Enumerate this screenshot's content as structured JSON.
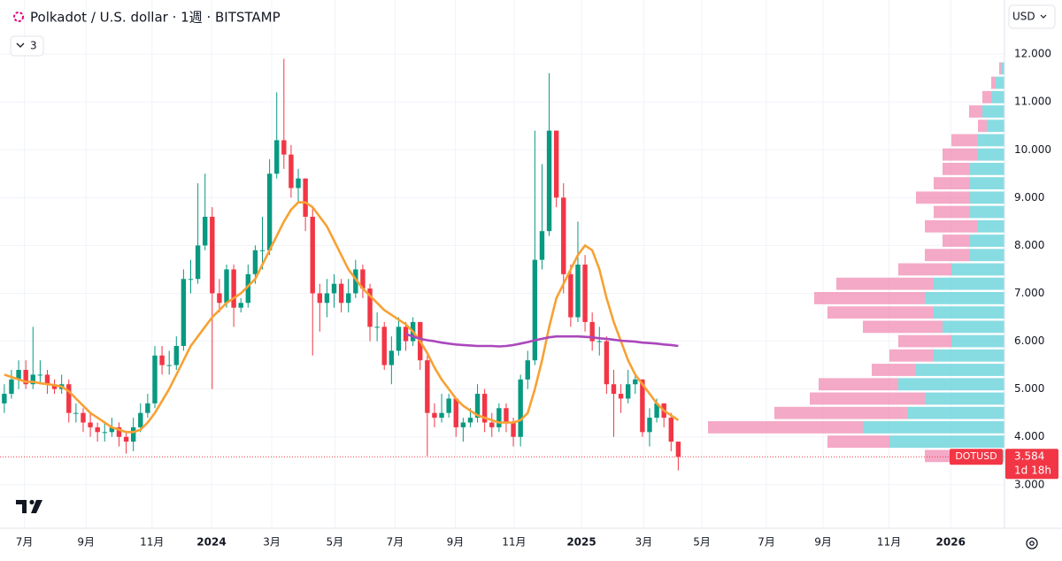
{
  "chart_data": {
    "type": "candlestick",
    "title": "Polkadot / U.S. dollar · 1週 · BITSTAMP",
    "currency": "USD",
    "indicators_collapsed": 3,
    "symbol": "DOTUSD",
    "last_price": 3.584,
    "countdown": "1d 18h",
    "up_color": "#089981",
    "down_color": "#f23645",
    "grid": true,
    "ylim": [
      2.09,
      13.13
    ],
    "yticks": [
      {
        "value": 3,
        "label": "3.000"
      },
      {
        "value": 4,
        "label": "4.000"
      },
      {
        "value": 5,
        "label": "5.000"
      },
      {
        "value": 6,
        "label": "6.000"
      },
      {
        "value": 7,
        "label": "7.000"
      },
      {
        "value": 8,
        "label": "8.000"
      },
      {
        "value": 9,
        "label": "9.000"
      },
      {
        "value": 10,
        "label": "10.000"
      },
      {
        "value": 11,
        "label": "11.000"
      },
      {
        "value": 12,
        "label": "12.000"
      }
    ],
    "xlim": [
      -0.6,
      139.5
    ],
    "xticks": [
      {
        "value": 2.8,
        "label": "7月"
      },
      {
        "value": 11.4,
        "label": "9月"
      },
      {
        "value": 20.6,
        "label": "11月"
      },
      {
        "value": 28.9,
        "label": "2024"
      },
      {
        "value": 37.3,
        "label": "3月"
      },
      {
        "value": 46.1,
        "label": "5月"
      },
      {
        "value": 54.5,
        "label": "7月"
      },
      {
        "value": 62.9,
        "label": "9月"
      },
      {
        "value": 71.1,
        "label": "11月"
      },
      {
        "value": 80.5,
        "label": "2025"
      },
      {
        "value": 89.2,
        "label": "3月"
      },
      {
        "value": 97.3,
        "label": "5月"
      },
      {
        "value": 106.3,
        "label": "7月"
      },
      {
        "value": 114.2,
        "label": "9月"
      },
      {
        "value": 123.4,
        "label": "11月"
      },
      {
        "value": 132.0,
        "label": "2026"
      }
    ],
    "open": [
      4.7,
      4.9,
      5.2,
      5.4,
      5.1,
      5.3,
      5.3,
      5.1,
      5.0,
      5.1,
      4.5,
      4.5,
      4.3,
      4.2,
      4.1,
      4.1,
      4.2,
      4.0,
      3.9,
      4.2,
      4.5,
      4.7,
      5.7,
      5.5,
      5.5,
      5.9,
      7.3,
      7.3,
      8.0,
      8.6,
      7.0,
      6.8,
      7.5,
      6.7,
      6.8,
      7.4,
      7.9,
      7.9,
      9.5,
      10.2,
      9.9,
      9.2,
      9.4,
      8.6,
      7.0,
      6.8,
      7.0,
      7.2,
      6.8,
      7.0,
      7.5,
      7.1,
      6.3,
      6.3,
      5.5,
      5.8,
      6.3,
      6.0,
      6.4,
      5.6,
      4.5,
      4.4,
      4.5,
      4.8,
      4.2,
      4.3,
      4.4,
      4.9,
      4.3,
      4.2,
      4.6,
      4.3,
      4.0,
      5.2,
      5.6,
      7.7,
      8.3,
      10.4,
      9.0,
      7.4,
      6.5,
      7.6,
      6.4,
      6.0,
      6.0,
      5.1,
      4.9,
      4.8,
      5.1,
      5.2,
      4.1,
      4.4,
      4.7,
      4.4,
      3.9
    ],
    "high": [
      5.1,
      5.4,
      5.6,
      5.6,
      6.3,
      5.6,
      5.4,
      5.2,
      5.3,
      5.2,
      4.7,
      4.6,
      4.5,
      4.3,
      4.3,
      4.4,
      4.3,
      4.1,
      4.4,
      4.7,
      4.9,
      5.9,
      5.9,
      5.8,
      6.1,
      7.5,
      7.7,
      9.3,
      9.5,
      8.8,
      7.3,
      7.6,
      7.6,
      6.9,
      7.6,
      8.0,
      8.6,
      9.8,
      11.2,
      11.9,
      10.1,
      9.6,
      9.4,
      8.8,
      7.2,
      7.3,
      7.4,
      7.3,
      7.3,
      7.7,
      7.6,
      7.2,
      6.6,
      6.4,
      6.1,
      6.5,
      6.4,
      6.5,
      6.4,
      5.7,
      4.7,
      4.9,
      4.9,
      4.8,
      4.4,
      4.6,
      5.1,
      5.0,
      4.5,
      4.7,
      4.7,
      4.4,
      5.3,
      5.8,
      10.4,
      9.7,
      11.6,
      10.4,
      9.3,
      7.6,
      8.5,
      7.8,
      6.6,
      6.3,
      6.1,
      5.4,
      5.1,
      5.4,
      5.3,
      5.2,
      4.6,
      4.8,
      4.7,
      4.5,
      3.9
    ],
    "low": [
      4.5,
      4.8,
      5.0,
      5.0,
      5.0,
      5.1,
      4.9,
      4.9,
      4.9,
      4.3,
      4.3,
      4.1,
      4.0,
      3.9,
      3.9,
      4.0,
      3.8,
      3.65,
      3.7,
      4.1,
      4.4,
      4.6,
      5.3,
      5.3,
      5.4,
      5.8,
      7.0,
      7.2,
      7.9,
      5.0,
      6.6,
      6.7,
      6.3,
      6.6,
      6.7,
      7.2,
      7.5,
      7.8,
      9.4,
      9.6,
      9.0,
      8.9,
      8.3,
      5.7,
      6.2,
      6.5,
      6.7,
      6.6,
      6.6,
      6.9,
      6.9,
      6.0,
      6.0,
      5.4,
      5.1,
      5.7,
      5.8,
      5.9,
      5.4,
      3.6,
      4.2,
      4.3,
      4.4,
      4.0,
      3.9,
      4.2,
      4.3,
      4.1,
      4.0,
      4.1,
      4.1,
      3.8,
      3.8,
      5.0,
      5.5,
      7.5,
      8.2,
      8.8,
      7.0,
      6.3,
      6.4,
      6.2,
      5.8,
      5.7,
      4.9,
      4.0,
      4.5,
      4.7,
      4.9,
      4.0,
      3.8,
      4.3,
      4.2,
      3.7,
      3.3
    ],
    "close": [
      4.9,
      5.2,
      5.4,
      5.1,
      5.3,
      5.3,
      5.1,
      5.0,
      5.1,
      4.5,
      4.5,
      4.3,
      4.2,
      4.1,
      4.1,
      4.2,
      4.0,
      3.9,
      4.2,
      4.5,
      4.7,
      5.7,
      5.5,
      5.5,
      5.9,
      7.3,
      7.3,
      8.0,
      8.6,
      7.0,
      6.8,
      7.5,
      6.7,
      6.8,
      7.4,
      7.9,
      7.9,
      9.5,
      10.2,
      9.9,
      9.2,
      9.4,
      8.6,
      7.0,
      6.8,
      7.0,
      7.2,
      6.8,
      7.0,
      7.5,
      7.1,
      6.3,
      6.3,
      5.5,
      5.8,
      6.3,
      6.0,
      6.4,
      5.6,
      4.5,
      4.4,
      4.5,
      4.8,
      4.2,
      4.3,
      4.4,
      4.9,
      4.3,
      4.2,
      4.6,
      4.3,
      4.0,
      5.2,
      5.6,
      7.7,
      8.3,
      10.4,
      9.0,
      7.4,
      6.5,
      7.6,
      6.4,
      6.0,
      6.0,
      5.1,
      4.9,
      4.8,
      5.1,
      5.2,
      4.1,
      4.4,
      4.7,
      4.4,
      3.9,
      3.584
    ],
    "series": [
      {
        "color": "#f7a133",
        "values": [
          5.3,
          5.25,
          5.2,
          5.15,
          5.15,
          5.12,
          5.1,
          5.08,
          5.05,
          4.95,
          4.8,
          4.65,
          4.5,
          4.4,
          4.3,
          4.2,
          4.15,
          4.1,
          4.1,
          4.15,
          4.3,
          4.5,
          4.75,
          5.0,
          5.3,
          5.6,
          5.9,
          6.1,
          6.3,
          6.5,
          6.65,
          6.8,
          6.9,
          7.0,
          7.15,
          7.3,
          7.6,
          7.9,
          8.2,
          8.5,
          8.75,
          8.9,
          8.9,
          8.8,
          8.6,
          8.4,
          8.1,
          7.8,
          7.5,
          7.3,
          7.1,
          6.95,
          6.8,
          6.65,
          6.55,
          6.45,
          6.35,
          6.2,
          6.0,
          5.75,
          5.45,
          5.2,
          5.0,
          4.8,
          4.65,
          4.55,
          4.45,
          4.4,
          4.35,
          4.3,
          4.3,
          4.3,
          4.35,
          4.5,
          5.0,
          5.6,
          6.3,
          6.9,
          7.2,
          7.5,
          7.8,
          8.0,
          7.9,
          7.5,
          6.9,
          6.4,
          6.0,
          5.6,
          5.3,
          5.1,
          4.9,
          4.7,
          4.55,
          4.45,
          4.35
        ]
      },
      {
        "color": "#ab47bc",
        "values": [
          null,
          null,
          null,
          null,
          null,
          null,
          null,
          null,
          null,
          null,
          null,
          null,
          null,
          null,
          null,
          null,
          null,
          null,
          null,
          null,
          null,
          null,
          null,
          null,
          null,
          null,
          null,
          null,
          null,
          null,
          null,
          null,
          null,
          null,
          null,
          null,
          null,
          null,
          null,
          null,
          null,
          null,
          null,
          null,
          null,
          null,
          null,
          null,
          null,
          null,
          null,
          null,
          null,
          null,
          null,
          null,
          6.15,
          6.1,
          6.05,
          6.02,
          6.0,
          5.97,
          5.95,
          5.93,
          5.92,
          5.91,
          5.9,
          5.9,
          5.9,
          5.89,
          5.9,
          5.92,
          5.95,
          5.98,
          6.02,
          6.05,
          6.08,
          6.1,
          6.1,
          6.1,
          6.1,
          6.09,
          6.08,
          6.06,
          6.05,
          6.03,
          6.01,
          6.0,
          5.99,
          5.97,
          5.96,
          5.95,
          5.93,
          5.92,
          5.9
        ]
      }
    ],
    "volume_profile": {
      "up_color": "#5fd0d8",
      "down_color": "#f08cb3",
      "prices": [
        3.6,
        3.9,
        4.2,
        4.5,
        4.8,
        5.1,
        5.4,
        5.7,
        6.0,
        6.3,
        6.6,
        6.9,
        7.2,
        7.5,
        7.8,
        8.1,
        8.4,
        8.7,
        9.0,
        9.3,
        9.6,
        9.9,
        10.2,
        10.5,
        10.8,
        11.1,
        11.4,
        11.7
      ],
      "up": [
        60,
        130,
        160,
        110,
        90,
        120,
        100,
        80,
        60,
        70,
        80,
        90,
        80,
        60,
        40,
        40,
        30,
        40,
        40,
        40,
        40,
        30,
        30,
        20,
        25,
        15,
        10,
        4
      ],
      "down": [
        30,
        70,
        175,
        150,
        130,
        90,
        50,
        50,
        60,
        90,
        120,
        125,
        110,
        60,
        50,
        30,
        60,
        40,
        60,
        40,
        30,
        40,
        30,
        10,
        15,
        10,
        5,
        2
      ]
    }
  }
}
